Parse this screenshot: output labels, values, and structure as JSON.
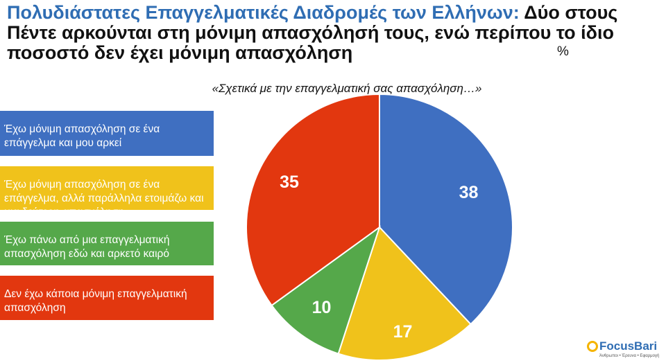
{
  "title": {
    "highlight": "Πολυδιάστατες Επαγγελματικές Διαδρομές των Ελλήνων:",
    "rest_line1": " Δύο στους",
    "line2": "Πέντε αρκούνται στη μόνιμη απασχόλησή τους, ενώ περίπου το ίδιο",
    "line3": "ποσοστό δεν έχει μόνιμη απασχόληση"
  },
  "unit": "%",
  "chart_data": {
    "type": "pie",
    "title": "«Σχετικά με την επαγγελματική σας απασχόληση…»",
    "slices": [
      {
        "label": "Έχω μόνιμη απασχόληση σε ένα επάγγελμα και μου αρκεί",
        "value": 38,
        "display": "38",
        "color": "#3f6fc1"
      },
      {
        "label": "Έχω μόνιμη απασχόληση σε ένα επάγγελμα, αλλά παράλληλα ετοιμάζω και μια δεύτερη απασχόληση",
        "value": 17,
        "display": "17",
        "color": "#f0c21b"
      },
      {
        "label": "Έχω πάνω από μια επαγγελματική απασχόληση εδώ και αρκετό καιρό",
        "value": 10,
        "display": "10",
        "color": "#55a84a"
      },
      {
        "label": "Δεν έχω κάποια μόνιμη επαγγελματική απασχόληση",
        "value": 35,
        "display": "35",
        "color": "#e2370f"
      }
    ]
  },
  "logo": {
    "name": "FocusBari",
    "tagline": "Άνθρωποι • Έρευνα • Εφαρμογή",
    "accent": "#f5b400"
  }
}
